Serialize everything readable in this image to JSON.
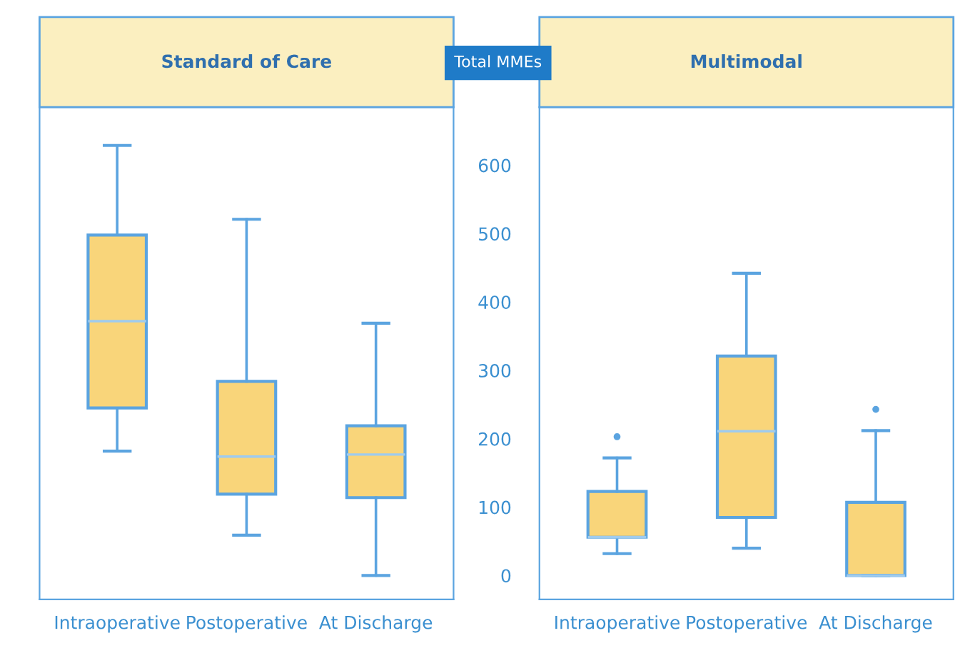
{
  "chart_data": [
    {
      "type": "box",
      "title": "Standard of Care",
      "categories": [
        "Intraoperative",
        "Postoperative",
        "At Discharge"
      ],
      "color": "#f9d57a",
      "ylim": [
        -35,
        685
      ],
      "tick_labels": "x",
      "grid": false,
      "boxes": [
        {
          "low": 182,
          "q1": 245,
          "median": 372,
          "q3": 498,
          "high": 629
        },
        {
          "low": 59,
          "q1": 119,
          "median": 174,
          "q3": 284,
          "high": 521
        },
        {
          "low": 0,
          "q1": 114,
          "median": 177,
          "q3": 219,
          "high": 369
        }
      ]
    },
    {
      "type": "box",
      "title": "Multimodal",
      "ylabel": "Total MMEs",
      "categories": [
        "Intraoperative",
        "Postoperative",
        "At Discharge"
      ],
      "color": "#f9d57a",
      "ylim": [
        -35,
        685
      ],
      "yticks": [
        0,
        100,
        200,
        300,
        400,
        500,
        600
      ],
      "grid": false,
      "boxes": [
        {
          "low": 32,
          "q1": 56,
          "median": 56,
          "q3": 123,
          "high": 172,
          "outliers": [
            203
          ]
        },
        {
          "low": 40,
          "q1": 85,
          "median": 211,
          "q3": 321,
          "high": 442
        },
        {
          "low": 0,
          "q1": 0,
          "median": 0,
          "q3": 107,
          "high": 212,
          "outliers": [
            243
          ]
        }
      ]
    }
  ]
}
